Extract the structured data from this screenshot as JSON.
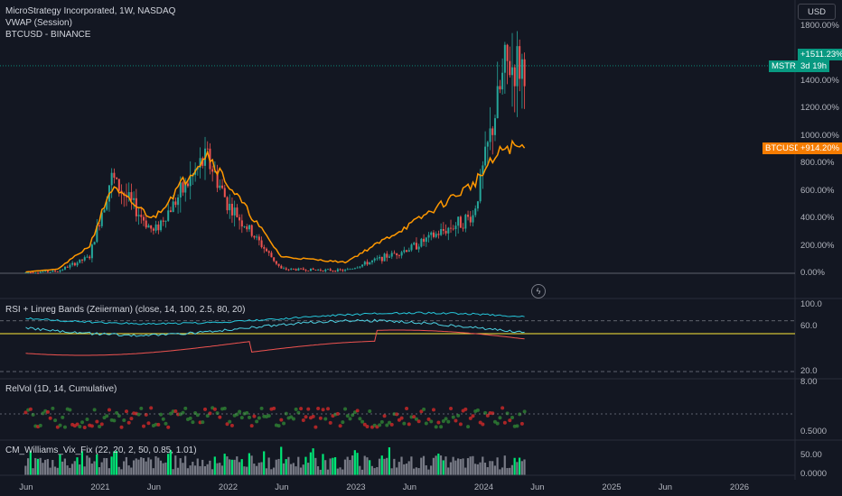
{
  "header": {
    "symbol_line": "MicroStrategy Incorporated, 1W, NASDAQ",
    "indicator_line": "VWAP (Session)",
    "compare_line": "BTCUSD - BINANCE"
  },
  "currency_button": "USD",
  "main_axis": {
    "ticks": [
      "1800.00%",
      "1600.00%",
      "1400.00%",
      "1200.00%",
      "1000.00%",
      "800.00%",
      "600.00%",
      "400.00%",
      "200.00%",
      "0.00%"
    ]
  },
  "badges": {
    "mstr_label": "MSTR",
    "mstr_value": "+1511.23%",
    "mstr_countdown": "3d 19h",
    "btc_label": "BTCUSD",
    "btc_value": "+914.20%"
  },
  "rsi_pane": {
    "title": "RSI + Linreg Bands (Zeiierman) (close, 14, 100, 2.5, 80, 20)",
    "ticks": [
      "100.0",
      "60.0",
      "20.0"
    ]
  },
  "relvol_pane": {
    "title": "RelVol (1D, 14, Cumulative)",
    "ticks": [
      "8.00",
      "0.5000"
    ]
  },
  "vix_pane": {
    "title": "CM_Williams_Vix_Fix (22, 20, 2, 50, 0.85, 1.01)",
    "ticks": [
      "50.00",
      "0.0000"
    ]
  },
  "time_axis": {
    "ticks": [
      "Jun",
      "2021",
      "Jun",
      "2022",
      "Jun",
      "2023",
      "Jun",
      "2024",
      "Jun",
      "2025",
      "Jun",
      "2026"
    ]
  },
  "colors": {
    "background": "#131722",
    "up": "#26a69a",
    "down": "#ef5350",
    "btc_line": "#ff9800",
    "mstr_badge": "#089981",
    "btc_badge": "#f57c00",
    "vix_green": "#00e676",
    "vix_gray": "#787b86",
    "rsi_teal": "#26c6da",
    "rsi_yellow": "#ffeb3b"
  },
  "chart_data": {
    "type": "line",
    "x": [
      "2020-06",
      "2020-09",
      "2020-12",
      "2021-02",
      "2021-06",
      "2021-11",
      "2022-01",
      "2022-06",
      "2022-12",
      "2023-06",
      "2023-12",
      "2024-03",
      "2024-05"
    ],
    "series": [
      {
        "name": "MSTR",
        "values": [
          5,
          15,
          120,
          700,
          300,
          850,
          500,
          30,
          20,
          180,
          420,
          1500,
          1511.23
        ]
      },
      {
        "name": "BTCUSD",
        "values": [
          10,
          30,
          200,
          620,
          400,
          880,
          650,
          120,
          80,
          350,
          650,
          920,
          914.2
        ]
      }
    ],
    "ylim": [
      -50,
      1850
    ],
    "grid": true
  }
}
